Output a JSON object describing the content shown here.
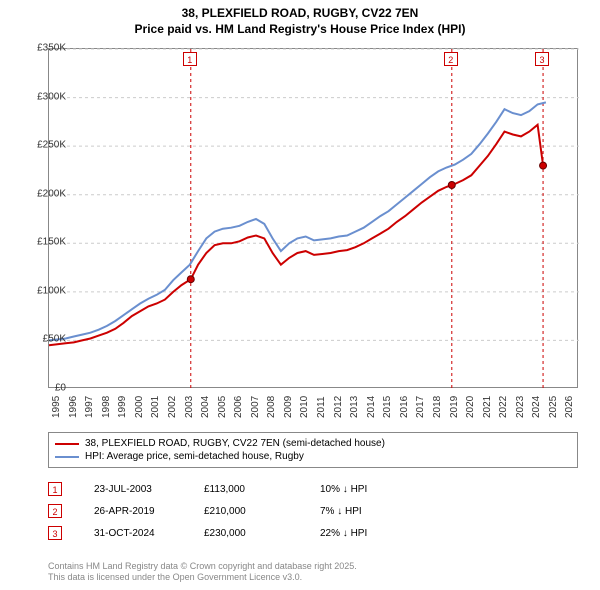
{
  "title": {
    "line1": "38, PLEXFIELD ROAD, RUGBY, CV22 7EN",
    "line2": "Price paid vs. HM Land Registry's House Price Index (HPI)"
  },
  "chart": {
    "type": "line",
    "background_color": "#ffffff",
    "grid_color": "#cccccc",
    "grid_dash": "3,3",
    "axis_color": "#888888",
    "x_axis": {
      "min": 1995,
      "max": 2027,
      "ticks": [
        1995,
        1996,
        1997,
        1998,
        1999,
        2000,
        2001,
        2002,
        2003,
        2004,
        2005,
        2006,
        2007,
        2008,
        2009,
        2010,
        2011,
        2012,
        2013,
        2014,
        2015,
        2016,
        2017,
        2018,
        2019,
        2020,
        2021,
        2022,
        2023,
        2024,
        2025,
        2026
      ],
      "tick_fontsize": 10,
      "tick_rotation": -90
    },
    "y_axis": {
      "min": 0,
      "max": 350000,
      "ticks": [
        0,
        50000,
        100000,
        150000,
        200000,
        250000,
        300000,
        350000
      ],
      "tick_labels": [
        "£0",
        "£50K",
        "£100K",
        "£150K",
        "£200K",
        "£250K",
        "£300K",
        "£350K"
      ],
      "tick_fontsize": 10
    },
    "series": [
      {
        "name": "38, PLEXFIELD ROAD, RUGBY, CV22 7EN (semi-detached house)",
        "color": "#cc0000",
        "line_width": 2,
        "data": [
          [
            1995.0,
            45000
          ],
          [
            1995.5,
            46000
          ],
          [
            1996.0,
            47000
          ],
          [
            1996.5,
            48000
          ],
          [
            1997.0,
            50000
          ],
          [
            1997.5,
            52000
          ],
          [
            1998.0,
            55000
          ],
          [
            1998.5,
            58000
          ],
          [
            1999.0,
            62000
          ],
          [
            1999.5,
            68000
          ],
          [
            2000.0,
            75000
          ],
          [
            2000.5,
            80000
          ],
          [
            2001.0,
            85000
          ],
          [
            2001.5,
            88000
          ],
          [
            2002.0,
            92000
          ],
          [
            2002.5,
            100000
          ],
          [
            2003.0,
            107000
          ],
          [
            2003.56,
            113000
          ],
          [
            2004.0,
            128000
          ],
          [
            2004.5,
            140000
          ],
          [
            2005.0,
            148000
          ],
          [
            2005.5,
            150000
          ],
          [
            2006.0,
            150000
          ],
          [
            2006.5,
            152000
          ],
          [
            2007.0,
            156000
          ],
          [
            2007.5,
            158000
          ],
          [
            2008.0,
            155000
          ],
          [
            2008.5,
            140000
          ],
          [
            2009.0,
            128000
          ],
          [
            2009.5,
            135000
          ],
          [
            2010.0,
            140000
          ],
          [
            2010.5,
            142000
          ],
          [
            2011.0,
            138000
          ],
          [
            2011.5,
            139000
          ],
          [
            2012.0,
            140000
          ],
          [
            2012.5,
            142000
          ],
          [
            2013.0,
            143000
          ],
          [
            2013.5,
            146000
          ],
          [
            2014.0,
            150000
          ],
          [
            2014.5,
            155000
          ],
          [
            2015.0,
            160000
          ],
          [
            2015.5,
            165000
          ],
          [
            2016.0,
            172000
          ],
          [
            2016.5,
            178000
          ],
          [
            2017.0,
            185000
          ],
          [
            2017.5,
            192000
          ],
          [
            2018.0,
            198000
          ],
          [
            2018.5,
            204000
          ],
          [
            2019.0,
            208000
          ],
          [
            2019.32,
            210000
          ],
          [
            2019.5,
            211000
          ],
          [
            2020.0,
            215000
          ],
          [
            2020.5,
            220000
          ],
          [
            2021.0,
            230000
          ],
          [
            2021.5,
            240000
          ],
          [
            2022.0,
            252000
          ],
          [
            2022.5,
            265000
          ],
          [
            2023.0,
            262000
          ],
          [
            2023.5,
            260000
          ],
          [
            2024.0,
            265000
          ],
          [
            2024.5,
            272000
          ],
          [
            2024.83,
            230000
          ],
          [
            2025.0,
            230000
          ]
        ],
        "markers": [
          {
            "x": 2003.56,
            "y": 113000
          },
          {
            "x": 2019.32,
            "y": 210000
          },
          {
            "x": 2024.83,
            "y": 230000
          }
        ]
      },
      {
        "name": "HPI: Average price, semi-detached house, Rugby",
        "color": "#6a8fcf",
        "line_width": 2,
        "data": [
          [
            1995.0,
            50000
          ],
          [
            1995.5,
            51000
          ],
          [
            1996.0,
            52000
          ],
          [
            1996.5,
            54000
          ],
          [
            1997.0,
            56000
          ],
          [
            1997.5,
            58000
          ],
          [
            1998.0,
            61000
          ],
          [
            1998.5,
            65000
          ],
          [
            1999.0,
            70000
          ],
          [
            1999.5,
            76000
          ],
          [
            2000.0,
            82000
          ],
          [
            2000.5,
            88000
          ],
          [
            2001.0,
            93000
          ],
          [
            2001.5,
            97000
          ],
          [
            2002.0,
            102000
          ],
          [
            2002.5,
            112000
          ],
          [
            2003.0,
            120000
          ],
          [
            2003.5,
            128000
          ],
          [
            2004.0,
            142000
          ],
          [
            2004.5,
            155000
          ],
          [
            2005.0,
            162000
          ],
          [
            2005.5,
            165000
          ],
          [
            2006.0,
            166000
          ],
          [
            2006.5,
            168000
          ],
          [
            2007.0,
            172000
          ],
          [
            2007.5,
            175000
          ],
          [
            2008.0,
            170000
          ],
          [
            2008.5,
            155000
          ],
          [
            2009.0,
            142000
          ],
          [
            2009.5,
            150000
          ],
          [
            2010.0,
            155000
          ],
          [
            2010.5,
            157000
          ],
          [
            2011.0,
            153000
          ],
          [
            2011.5,
            154000
          ],
          [
            2012.0,
            155000
          ],
          [
            2012.5,
            157000
          ],
          [
            2013.0,
            158000
          ],
          [
            2013.5,
            162000
          ],
          [
            2014.0,
            166000
          ],
          [
            2014.5,
            172000
          ],
          [
            2015.0,
            178000
          ],
          [
            2015.5,
            183000
          ],
          [
            2016.0,
            190000
          ],
          [
            2016.5,
            197000
          ],
          [
            2017.0,
            204000
          ],
          [
            2017.5,
            211000
          ],
          [
            2018.0,
            218000
          ],
          [
            2018.5,
            224000
          ],
          [
            2019.0,
            228000
          ],
          [
            2019.5,
            231000
          ],
          [
            2020.0,
            236000
          ],
          [
            2020.5,
            242000
          ],
          [
            2021.0,
            252000
          ],
          [
            2021.5,
            263000
          ],
          [
            2022.0,
            275000
          ],
          [
            2022.5,
            288000
          ],
          [
            2023.0,
            284000
          ],
          [
            2023.5,
            282000
          ],
          [
            2024.0,
            286000
          ],
          [
            2024.5,
            293000
          ],
          [
            2025.0,
            295000
          ]
        ]
      }
    ],
    "event_lines": [
      {
        "id": "1",
        "x": 2003.56,
        "color": "#cc0000"
      },
      {
        "id": "2",
        "x": 2019.32,
        "color": "#cc0000"
      },
      {
        "id": "3",
        "x": 2024.83,
        "color": "#cc0000"
      }
    ],
    "marker_style": {
      "radius": 3.5,
      "fill": "#cc0000",
      "stroke": "#660000"
    }
  },
  "legend": {
    "items": [
      {
        "color": "#cc0000",
        "label": "38, PLEXFIELD ROAD, RUGBY, CV22 7EN (semi-detached house)"
      },
      {
        "color": "#6a8fcf",
        "label": "HPI: Average price, semi-detached house, Rugby"
      }
    ]
  },
  "events_table": {
    "rows": [
      {
        "id": "1",
        "date": "23-JUL-2003",
        "price": "£113,000",
        "delta": "10% ↓ HPI"
      },
      {
        "id": "2",
        "date": "26-APR-2019",
        "price": "£210,000",
        "delta": "7% ↓ HPI"
      },
      {
        "id": "3",
        "date": "31-OCT-2024",
        "price": "£230,000",
        "delta": "22% ↓ HPI"
      }
    ]
  },
  "footer": {
    "line1": "Contains HM Land Registry data © Crown copyright and database right 2025.",
    "line2": "This data is licensed under the Open Government Licence v3.0."
  }
}
